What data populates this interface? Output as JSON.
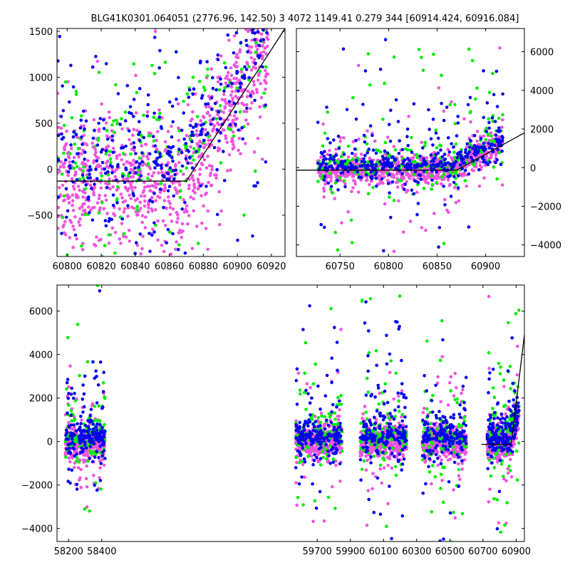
{
  "figure": {
    "title": "BLG41K0301.064051 (2776.96, 142.50)     3 4072 1149.41 0.279 344 [60914.424, 60916.084]"
  },
  "colors": {
    "series_a": "#0000ee",
    "series_b": "#00ee00",
    "series_c": "#ee55dd",
    "model": "#000000",
    "axes": "#000000"
  },
  "chart_data": [
    {
      "type": "scatter",
      "id": "zoom-recent",
      "xlim": [
        60794,
        60928
      ],
      "ylim": [
        -950,
        1530
      ],
      "xticks": [
        60800,
        60820,
        60840,
        60860,
        60880,
        60900,
        60920
      ],
      "yticks": [
        -500,
        0,
        500,
        1000,
        1500
      ],
      "y_axis_side": "left",
      "model_line": {
        "x": [
          60794,
          60870,
          60928
        ],
        "y": [
          -130,
          -130,
          1530
        ]
      },
      "seasons": [
        {
          "start": 60794,
          "end": 60918,
          "ramp_start": 60868,
          "ramp_end": 60918,
          "ramp_max": 1500,
          "base": -130,
          "spread": 330
        }
      ]
    },
    {
      "type": "scatter",
      "id": "season-latest",
      "xlim": [
        60705,
        60940
      ],
      "ylim": [
        -4600,
        7200
      ],
      "xticks": [
        60750,
        60800,
        60850,
        60900
      ],
      "yticks": [
        -4000,
        -2000,
        0,
        2000,
        4000,
        6000
      ],
      "y_axis_side": "right",
      "model_line": {
        "x": [
          60705,
          60870,
          60940
        ],
        "y": [
          -130,
          -130,
          1800
        ]
      },
      "seasons": [
        {
          "start": 60727,
          "end": 60918,
          "ramp_start": 60860,
          "ramp_end": 60918,
          "ramp_max": 1400,
          "base": -100,
          "spread": 330
        }
      ]
    },
    {
      "type": "scatter",
      "id": "all-seasons",
      "xlim": [
        58130,
        60950
      ],
      "ylim": [
        -4600,
        7200
      ],
      "xticks": [
        58200,
        58400,
        59700,
        59900,
        60100,
        60300,
        60500,
        60700,
        60900
      ],
      "yticks": [
        -4000,
        -2000,
        0,
        2000,
        4000,
        6000
      ],
      "y_axis_side": "left",
      "model_line": {
        "x": [
          60690,
          60870,
          60950
        ],
        "y": [
          -130,
          -130,
          4900
        ]
      },
      "seasons": [
        {
          "start": 58180,
          "end": 58420,
          "ramp_start": 58300,
          "ramp_end": 58420,
          "ramp_max": 0,
          "base": -50,
          "spread": 350
        },
        {
          "start": 59570,
          "end": 59850,
          "ramp_start": 59700,
          "ramp_end": 59850,
          "ramp_max": 0,
          "base": 0,
          "spread": 380
        },
        {
          "start": 59960,
          "end": 60240,
          "ramp_start": 60100,
          "ramp_end": 60240,
          "ramp_max": 0,
          "base": 0,
          "spread": 380
        },
        {
          "start": 60335,
          "end": 60600,
          "ramp_start": 60450,
          "ramp_end": 60600,
          "ramp_max": 0,
          "base": -30,
          "spread": 360
        },
        {
          "start": 60725,
          "end": 60918,
          "ramp_start": 60860,
          "ramp_end": 60918,
          "ramp_max": 1400,
          "base": -100,
          "spread": 330
        }
      ]
    }
  ]
}
